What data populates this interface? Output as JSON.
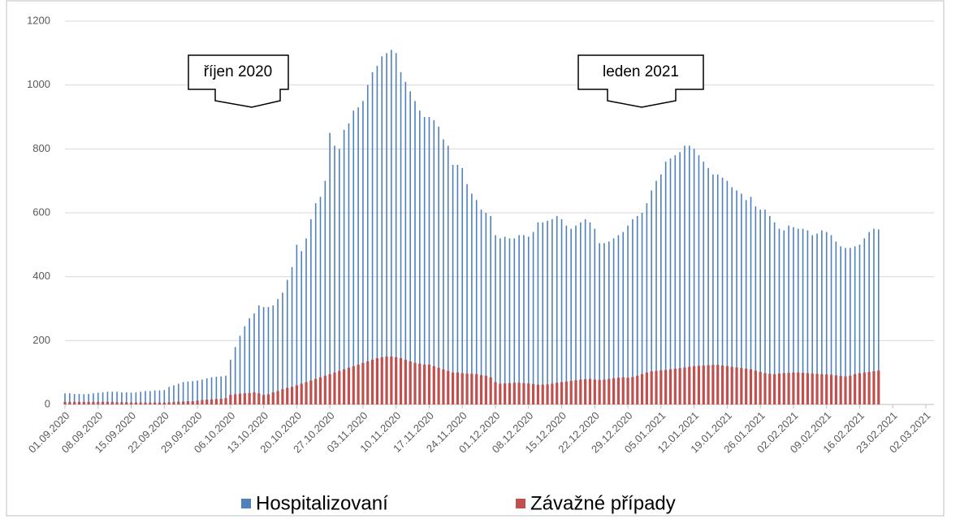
{
  "chart_data": {
    "type": "bar",
    "annotations": [
      "říjen 2020",
      "leden 2021"
    ],
    "categories": [
      "01.09.2020",
      null,
      null,
      null,
      null,
      null,
      null,
      "08.09.2020",
      null,
      null,
      null,
      null,
      null,
      null,
      "15.09.2020",
      null,
      null,
      null,
      null,
      null,
      null,
      "22.09.2020",
      null,
      null,
      null,
      null,
      null,
      null,
      "29.09.2020",
      null,
      null,
      null,
      null,
      null,
      null,
      "06.10.2020",
      null,
      null,
      null,
      null,
      null,
      null,
      "13.10.2020",
      null,
      null,
      null,
      null,
      null,
      null,
      "20.10.2020",
      null,
      null,
      null,
      null,
      null,
      null,
      "27.10.2020",
      null,
      null,
      null,
      null,
      null,
      null,
      "03.11.2020",
      null,
      null,
      null,
      null,
      null,
      null,
      "10.11.2020",
      null,
      null,
      null,
      null,
      null,
      null,
      "17.11.2020",
      null,
      null,
      null,
      null,
      null,
      null,
      "24.11.2020",
      null,
      null,
      null,
      null,
      null,
      null,
      "01.12.2020",
      null,
      null,
      null,
      null,
      null,
      null,
      "08.12.2020",
      null,
      null,
      null,
      null,
      null,
      null,
      "15.12.2020",
      null,
      null,
      null,
      null,
      null,
      null,
      "22.12.2020",
      null,
      null,
      null,
      null,
      null,
      null,
      "29.12.2020",
      null,
      null,
      null,
      null,
      null,
      null,
      "05.01.2021",
      null,
      null,
      null,
      null,
      null,
      null,
      "12.01.2021",
      null,
      null,
      null,
      null,
      null,
      null,
      "19.01.2021",
      null,
      null,
      null,
      null,
      null,
      null,
      "26.01.2021",
      null,
      null,
      null,
      null,
      null,
      null,
      "02.02.2021",
      null,
      null,
      null,
      null,
      null,
      null,
      "09.02.2021",
      null,
      null,
      null,
      null,
      null,
      null,
      "16.02.2021",
      null,
      null,
      null,
      null,
      null,
      null,
      "23.02.2021",
      null,
      null,
      null,
      null,
      null,
      null,
      "02.03.2021"
    ],
    "series": [
      {
        "name": "Hospitalizovaní",
        "color": "#4f81bd",
        "values": [
          35,
          35,
          33,
          33,
          32,
          33,
          35,
          37,
          38,
          40,
          40,
          40,
          38,
          38,
          37,
          38,
          40,
          42,
          42,
          44,
          44,
          45,
          55,
          60,
          65,
          70,
          72,
          73,
          75,
          78,
          82,
          85,
          87,
          88,
          90,
          140,
          180,
          215,
          245,
          270,
          285,
          310,
          305,
          305,
          310,
          330,
          350,
          390,
          430,
          500,
          480,
          520,
          580,
          630,
          650,
          700,
          850,
          810,
          800,
          860,
          880,
          920,
          930,
          950,
          1000,
          1040,
          1060,
          1090,
          1100,
          1110,
          1100,
          1040,
          1010,
          980,
          950,
          920,
          900,
          900,
          890,
          870,
          830,
          810,
          750,
          750,
          740,
          690,
          660,
          640,
          610,
          600,
          590,
          530,
          520,
          525,
          520,
          520,
          530,
          530,
          525,
          540,
          570,
          570,
          575,
          580,
          590,
          580,
          560,
          550,
          560,
          570,
          580,
          570,
          550,
          505,
          505,
          510,
          520,
          530,
          540,
          560,
          580,
          590,
          600,
          630,
          670,
          700,
          720,
          760,
          770,
          780,
          790,
          810,
          810,
          800,
          780,
          760,
          740,
          720,
          720,
          710,
          700,
          680,
          670,
          660,
          640,
          650,
          620,
          610,
          610,
          590,
          570,
          550,
          545,
          560,
          555,
          550,
          550,
          545,
          530,
          535,
          545,
          540,
          530,
          510,
          495,
          490,
          490,
          495,
          500,
          520,
          540,
          550,
          548,
          null,
          null,
          null,
          null,
          null,
          null,
          null,
          null,
          null,
          null
        ]
      },
      {
        "name": "Závažné případy",
        "color": "#c0504d",
        "values": [
          8,
          8,
          8,
          8,
          8,
          8,
          8,
          8,
          8,
          8,
          8,
          7,
          7,
          7,
          6,
          6,
          6,
          6,
          6,
          6,
          6,
          6,
          7,
          8,
          9,
          9,
          10,
          10,
          12,
          14,
          15,
          16,
          17,
          18,
          20,
          30,
          32,
          34,
          35,
          36,
          38,
          35,
          30,
          32,
          38,
          42,
          48,
          52,
          55,
          60,
          65,
          70,
          75,
          80,
          85,
          90,
          95,
          100,
          105,
          110,
          115,
          120,
          125,
          130,
          135,
          140,
          145,
          148,
          150,
          150,
          148,
          145,
          140,
          135,
          130,
          128,
          125,
          125,
          120,
          115,
          110,
          105,
          100,
          100,
          98,
          97,
          96,
          95,
          92,
          90,
          85,
          70,
          65,
          66,
          67,
          68,
          68,
          67,
          66,
          64,
          62,
          62,
          63,
          65,
          68,
          70,
          72,
          74,
          76,
          78,
          79,
          80,
          78,
          77,
          78,
          80,
          82,
          84,
          85,
          84,
          86,
          90,
          95,
          100,
          104,
          105,
          107,
          108,
          110,
          112,
          114,
          116,
          118,
          120,
          121,
          122,
          123,
          124,
          124,
          122,
          120,
          118,
          116,
          114,
          112,
          110,
          106,
          102,
          98,
          96,
          95,
          97,
          98,
          99,
          100,
          100,
          99,
          98,
          97,
          96,
          95,
          94,
          93,
          91,
          89,
          88,
          90,
          95,
          98,
          100,
          102,
          104,
          106,
          null,
          null,
          null,
          null,
          null,
          null,
          null,
          null,
          null,
          null
        ]
      }
    ],
    "ylim": [
      0,
      1200
    ],
    "yticks": [
      0,
      200,
      400,
      600,
      800,
      1000,
      1200
    ],
    "grid": true,
    "legend": "bottom"
  }
}
